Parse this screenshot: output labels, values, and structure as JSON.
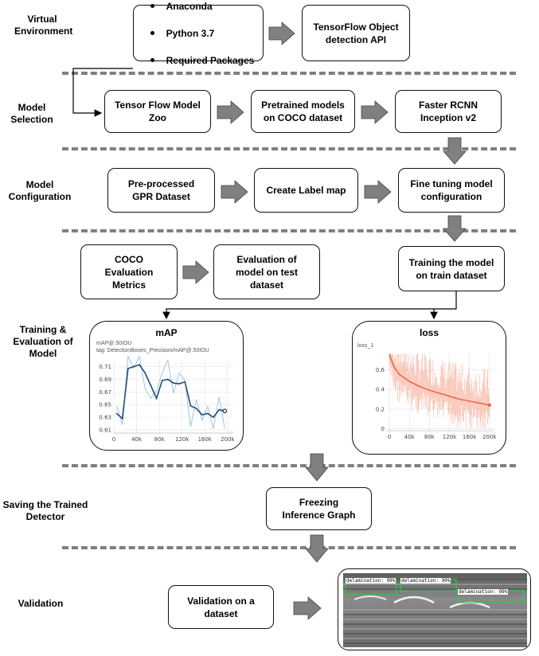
{
  "sections": {
    "virtual": "Virtual\nEnvironment",
    "model_selection": "Model\nSelection",
    "model_config": "Model\nConfiguration",
    "training": "Training &\nEvaluation of\nModel",
    "saving": "Saving the Trained\nDetector",
    "validation": "Validation"
  },
  "boxes": {
    "env_items": [
      "Anaconda",
      "Python 3.7",
      "Required Packages"
    ],
    "tf_api": "TensorFlow Object\ndetection API",
    "model_zoo": "Tensor Flow Model\nZoo",
    "pretrained": "Pretrained models\non COCO dataset",
    "faster_rcnn": "Faster RCNN\nInception v2",
    "gpr_dataset": "Pre-processed\nGPR Dataset",
    "label_map": "Create Label map",
    "fine_tuning": "Fine tuning model\nconfiguration",
    "coco_metrics": "COCO\nEvaluation\nMetrics",
    "evaluation": "Evaluation of\nmodel on test\ndataset",
    "training": "Training the model\non train dataset",
    "freezing": "Freezing\nInference Graph",
    "validation_box": "Validation on a\ndataset"
  },
  "map_chart": {
    "title": "mAP",
    "sub1": "mAP@.50IOU",
    "sub2": "tag: DetectionBoxes_Precision/mAP@.50IOU"
  },
  "loss_chart": {
    "title": "loss",
    "sub1": "loss_1"
  },
  "detections": [
    "delamination: 99%",
    "delamination: 99%",
    "delamination: 99%"
  ],
  "colors": {
    "dash": "#7f7f7f",
    "arrow_fill": "#808080",
    "map_line": "#1f4e79",
    "map_raw": "#9ec3e6",
    "loss_line": "#e8603c",
    "loss_raw": "#f7b3a1",
    "detection_box": "#2ecc40"
  },
  "chart_data": [
    {
      "type": "line",
      "title": "mAP",
      "subtitle": "mAP@.50IOU",
      "xlabel": "",
      "ylabel": "",
      "x_ticks": [
        "0",
        "40k",
        "80k",
        "120k",
        "160k",
        "200k"
      ],
      "y_ticks": [
        "0.61",
        "0.63",
        "0.65",
        "0.67",
        "0.69",
        "0.71"
      ],
      "xlim": [
        0,
        210000
      ],
      "ylim": [
        0.605,
        0.722
      ],
      "series": [
        {
          "x": [
            5000,
            15000,
            25000,
            35000,
            45000,
            55000,
            65000,
            75000,
            85000,
            95000,
            105000,
            115000,
            125000,
            135000,
            145000,
            155000,
            165000,
            175000,
            185000,
            195000
          ],
          "values": [
            0.636,
            0.628,
            0.707,
            0.71,
            0.713,
            0.7,
            0.68,
            0.66,
            0.688,
            0.69,
            0.684,
            0.683,
            0.686,
            0.648,
            0.644,
            0.634,
            0.636,
            0.63,
            0.642,
            0.64
          ],
          "raw": [
            0.648,
            0.618,
            0.726,
            0.708,
            0.726,
            0.675,
            0.66,
            0.672,
            0.7,
            0.72,
            0.668,
            0.7,
            0.688,
            0.615,
            0.658,
            0.625,
            0.647,
            0.612,
            0.662,
            0.612
          ]
        }
      ],
      "grid": true
    },
    {
      "type": "line",
      "title": "loss",
      "subtitle": "loss_1",
      "xlabel": "",
      "ylabel": "",
      "x_ticks": [
        "0",
        "40k",
        "80k",
        "120k",
        "160k",
        "200k"
      ],
      "y_ticks": [
        "0",
        "0.2",
        "0.4",
        "0.6"
      ],
      "xlim": [
        -5000,
        210000
      ],
      "ylim": [
        -0.02,
        0.78
      ],
      "series": [
        {
          "x": [
            0,
            10000,
            20000,
            40000,
            60000,
            80000,
            100000,
            120000,
            140000,
            160000,
            180000,
            200000
          ],
          "values": [
            0.75,
            0.62,
            0.55,
            0.48,
            0.43,
            0.39,
            0.36,
            0.33,
            0.3,
            0.28,
            0.26,
            0.24
          ]
        }
      ],
      "grid": true
    }
  ]
}
